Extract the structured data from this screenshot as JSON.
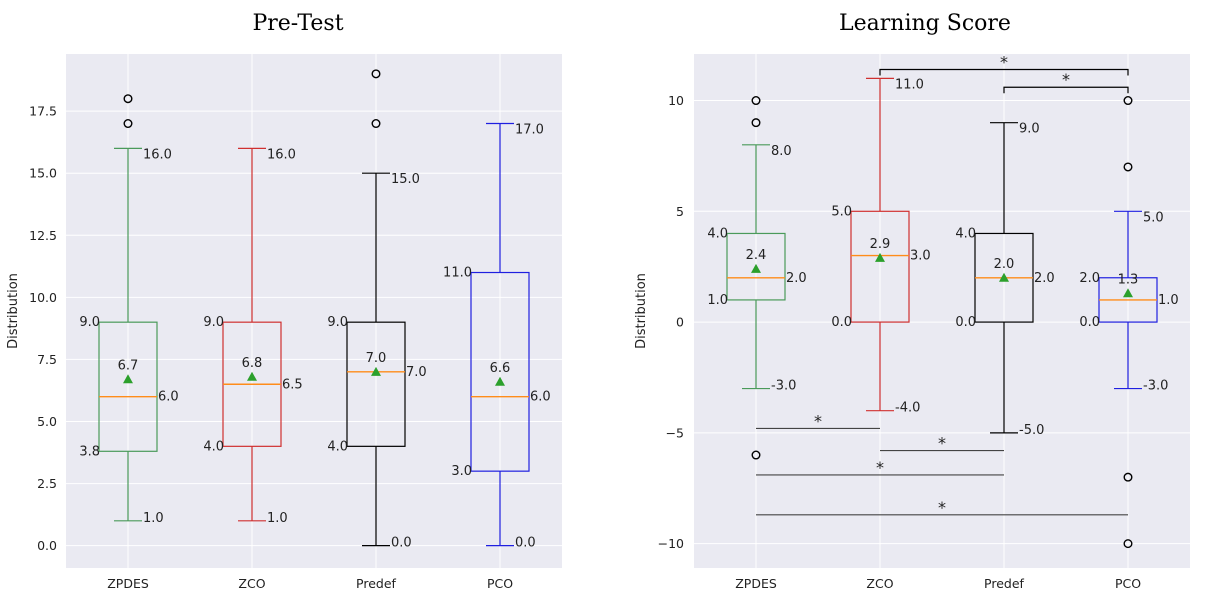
{
  "chart_data": [
    {
      "type": "box",
      "title": "Pre-Test",
      "ylabel": "Distribution",
      "categories": [
        "ZPDES",
        "ZCO",
        "Predef",
        "PCO"
      ],
      "ylim": [
        -0.9,
        19.8
      ],
      "yticks": [
        0.0,
        2.5,
        5.0,
        7.5,
        10.0,
        12.5,
        15.0,
        17.5
      ],
      "ytick_labels": [
        "0.0",
        "2.5",
        "5.0",
        "7.5",
        "10.0",
        "12.5",
        "15.0",
        "17.5"
      ],
      "grid": true,
      "boxes": [
        {
          "name": "ZPDES",
          "color": "#4a9a5a",
          "q1": 3.8,
          "median": 6.0,
          "q3": 9.0,
          "whisker_low": 1.0,
          "whisker_high": 16.0,
          "mean": 6.7,
          "outliers": [
            17,
            18
          ],
          "labels": {
            "q1": "3.8",
            "median": "6.0",
            "q3": "9.0",
            "low": "1.0",
            "high": "16.0",
            "mean": "6.7"
          }
        },
        {
          "name": "ZCO",
          "color": "#d03030",
          "q1": 4.0,
          "median": 6.5,
          "q3": 9.0,
          "whisker_low": 1.0,
          "whisker_high": 16.0,
          "mean": 6.8,
          "outliers": [],
          "labels": {
            "q1": "4.0",
            "median": "6.5",
            "q3": "9.0",
            "low": "1.0",
            "high": "16.0",
            "mean": "6.8"
          }
        },
        {
          "name": "Predef",
          "color": "#000000",
          "q1": 4.0,
          "median": 7.0,
          "q3": 9.0,
          "whisker_low": 0.0,
          "whisker_high": 15.0,
          "mean": 7.0,
          "outliers": [
            17,
            19
          ],
          "labels": {
            "q1": "4.0",
            "median": "7.0",
            "q3": "9.0",
            "low": "0.0",
            "high": "15.0",
            "mean": "7.0"
          }
        },
        {
          "name": "PCO",
          "color": "#1f1fe0",
          "q1": 3.0,
          "median": 6.0,
          "q3": 11.0,
          "whisker_low": 0.0,
          "whisker_high": 17.0,
          "mean": 6.6,
          "outliers": [],
          "labels": {
            "q1": "3.0",
            "median": "6.0",
            "q3": "11.0",
            "low": "0.0",
            "high": "17.0",
            "mean": "6.6"
          }
        }
      ],
      "significance": []
    },
    {
      "type": "box",
      "title": "Learning Score",
      "ylabel": "Distribution",
      "categories": [
        "ZPDES",
        "ZCO",
        "Predef",
        "PCO"
      ],
      "ylim": [
        -11.1,
        12.1
      ],
      "yticks": [
        -10,
        -5,
        0,
        5,
        10
      ],
      "ytick_labels": [
        "−10",
        "−5",
        "0",
        "5",
        "10"
      ],
      "grid": true,
      "boxes": [
        {
          "name": "ZPDES",
          "color": "#4a9a5a",
          "q1": 1.0,
          "median": 2.0,
          "q3": 4.0,
          "whisker_low": -3.0,
          "whisker_high": 8.0,
          "mean": 2.4,
          "outliers": [
            9,
            10,
            -6
          ],
          "labels": {
            "q1": "1.0",
            "median": "2.0",
            "q3": "4.0",
            "low": "-3.0",
            "high": "8.0",
            "mean": "2.4"
          }
        },
        {
          "name": "ZCO",
          "color": "#d03030",
          "q1": 0.0,
          "median": 3.0,
          "q3": 5.0,
          "whisker_low": -4.0,
          "whisker_high": 11.0,
          "mean": 2.9,
          "outliers": [],
          "labels": {
            "q1": "0.0",
            "median": "3.0",
            "q3": "5.0",
            "low": "-4.0",
            "high": "11.0",
            "mean": "2.9"
          }
        },
        {
          "name": "Predef",
          "color": "#000000",
          "q1": 0.0,
          "median": 2.0,
          "q3": 4.0,
          "whisker_low": -5.0,
          "whisker_high": 9.0,
          "mean": 2.0,
          "outliers": [],
          "labels": {
            "q1": "0.0",
            "median": "2.0",
            "q3": "4.0",
            "low": "-5.0",
            "high": "9.0",
            "mean": "2.0"
          }
        },
        {
          "name": "PCO",
          "color": "#1f1fe0",
          "q1": 0.0,
          "median": 1.0,
          "q3": 2.0,
          "whisker_low": -3.0,
          "whisker_high": 5.0,
          "mean": 1.3,
          "outliers": [
            7,
            10,
            -7,
            -10
          ],
          "labels": {
            "q1": "0.0",
            "median": "1.0",
            "q3": "2.0",
            "low": "-3.0",
            "high": "5.0",
            "mean": "1.3"
          }
        }
      ],
      "significance": [
        {
          "from": "ZCO",
          "to": "PCO",
          "y": 11.4,
          "style": "bracket",
          "label": "*"
        },
        {
          "from": "Predef",
          "to": "PCO",
          "y": 10.6,
          "style": "bracket",
          "label": "*"
        },
        {
          "from": "ZPDES",
          "to": "ZCO",
          "y": -4.8,
          "style": "line",
          "label": "*"
        },
        {
          "from": "ZCO",
          "to": "Predef",
          "y": -5.8,
          "style": "line",
          "label": "*"
        },
        {
          "from": "ZPDES",
          "to": "Predef",
          "y": -6.9,
          "style": "line",
          "label": "*"
        },
        {
          "from": "ZPDES",
          "to": "PCO",
          "y": -8.7,
          "style": "line",
          "label": "*"
        }
      ]
    }
  ],
  "style": {
    "plot_bg": "#eaeaf2",
    "grid_color": "#ffffff",
    "median_color": "#ff8c1a",
    "mean_color": "#2ca02c"
  }
}
